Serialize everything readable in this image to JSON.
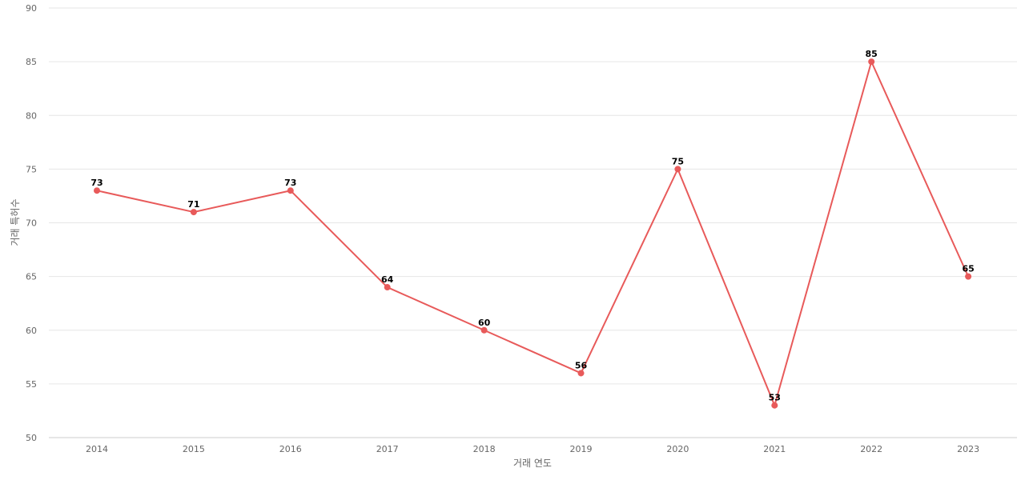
{
  "chart_data": {
    "type": "line",
    "title": "",
    "xlabel": "거래 연도",
    "ylabel": "거래 특허수",
    "x": [
      "2014",
      "2015",
      "2016",
      "2017",
      "2018",
      "2019",
      "2020",
      "2021",
      "2022",
      "2023"
    ],
    "series": [
      {
        "values": [
          73,
          71,
          73,
          64,
          60,
          56,
          75,
          53,
          85,
          65
        ],
        "color": "#e85a5a"
      }
    ],
    "ylim": [
      50,
      90
    ],
    "yticks": [
      "50",
      "55",
      "60",
      "65",
      "70",
      "75",
      "80",
      "85",
      "90"
    ],
    "grid": true,
    "legend": "none"
  }
}
